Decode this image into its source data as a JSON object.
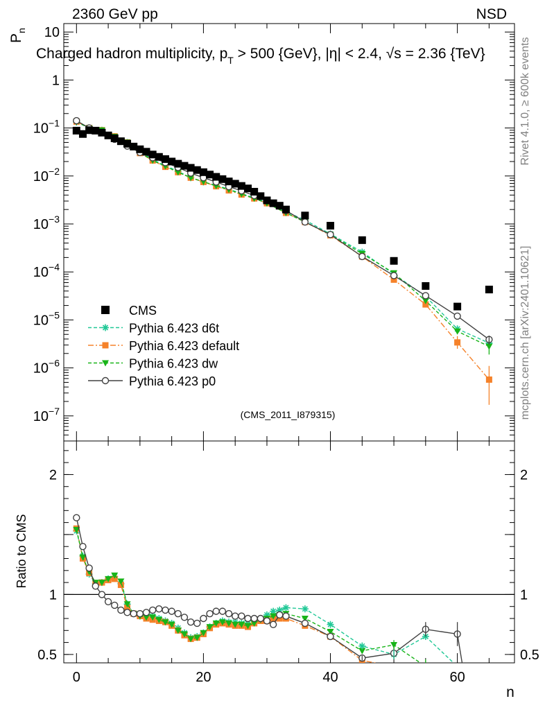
{
  "header": {
    "left": "2360 GeV pp",
    "right": "NSD",
    "title": "Charged hadron multiplicity, p",
    "title_sub": "T",
    "title_rest": " > 500 {GeV}, |η| < 2.4, √s = 2.36 {TeV}"
  },
  "side_text": {
    "rivet": "Rivet 4.1.0, ≥ 600k events",
    "mcplots": "mcplots.cern.ch [arXiv:2401.10621]"
  },
  "analysis_tag": "(CMS_2011_I879315)",
  "colors": {
    "cms": "#000000",
    "d6t": "#20c896",
    "default": "#f5822a",
    "dw": "#18b418",
    "p0": "#404040"
  },
  "legend": [
    {
      "key": "cms",
      "label": "CMS"
    },
    {
      "key": "d6t",
      "label": "Pythia 6.423 d6t"
    },
    {
      "key": "default",
      "label": "Pythia 6.423 default"
    },
    {
      "key": "dw",
      "label": "Pythia 6.423 dw"
    },
    {
      "key": "p0",
      "label": "Pythia 6.423 p0"
    }
  ],
  "chart_data": [
    {
      "type": "scatter",
      "title": "Charged hadron multiplicity",
      "xlabel": "n",
      "ylabel": "Pn",
      "yscale": "log",
      "xlim": [
        -2,
        69
      ],
      "ylim": [
        3e-08,
        15
      ],
      "ytick_labels": [
        "10^-7",
        "10^-6",
        "10^-5",
        "10^-4",
        "10^-3",
        "10^-2",
        "10^-1",
        "1",
        "10"
      ],
      "cms": {
        "x": [
          0,
          1,
          2,
          3,
          4,
          5,
          6,
          7,
          8,
          9,
          10,
          11,
          12,
          13,
          14,
          15,
          16,
          17,
          18,
          19,
          20,
          21,
          22,
          23,
          24,
          25,
          26,
          27,
          28,
          29,
          30,
          31,
          32,
          33,
          36,
          40,
          45,
          50,
          55,
          60,
          65
        ],
        "y": [
          0.088,
          0.075,
          0.09,
          0.088,
          0.08,
          0.07,
          0.061,
          0.053,
          0.047,
          0.041,
          0.036,
          0.032,
          0.028,
          0.025,
          0.0225,
          0.02,
          0.018,
          0.0163,
          0.0148,
          0.0133,
          0.012,
          0.0107,
          0.0096,
          0.0086,
          0.0077,
          0.0069,
          0.0062,
          0.0055,
          0.0047,
          0.0038,
          0.0031,
          0.0027,
          0.0024,
          0.002,
          0.0015,
          0.00092,
          0.00046,
          0.00017,
          5.1e-05,
          1.9e-05,
          4.3e-05
        ]
      },
      "series": [
        {
          "name": "Pythia 6.423 d6t",
          "key": "d6t",
          "x": [
            0,
            2,
            4,
            6,
            8,
            10,
            12,
            14,
            16,
            18,
            20,
            22,
            24,
            26,
            28,
            30,
            33,
            36,
            40,
            45,
            50,
            55,
            60,
            65
          ],
          "y": [
            0.133,
            0.1,
            0.09,
            0.066,
            0.05,
            0.032,
            0.022,
            0.0165,
            0.0125,
            0.0092,
            0.0075,
            0.0064,
            0.0053,
            0.0043,
            0.0035,
            0.0028,
            0.0018,
            0.0012,
            0.00062,
            0.00026,
            9e-05,
            3.1e-05,
            6.5e-06,
            3.3e-06
          ]
        },
        {
          "name": "Pythia 6.423 default",
          "key": "default",
          "x": [
            0,
            2,
            4,
            6,
            8,
            10,
            12,
            14,
            16,
            18,
            20,
            22,
            24,
            26,
            28,
            30,
            33,
            36,
            40,
            45,
            50,
            55,
            60,
            65
          ],
          "y": [
            0.136,
            0.1,
            0.09,
            0.067,
            0.05,
            0.03,
            0.021,
            0.0155,
            0.012,
            0.0092,
            0.0075,
            0.0061,
            0.005,
            0.0041,
            0.0034,
            0.0027,
            0.0017,
            0.0011,
            0.00058,
            0.00021,
            6.9e-05,
            2.1e-05,
            3.4e-06,
            5.7e-07
          ]
        },
        {
          "name": "Pythia 6.423 dw",
          "key": "dw",
          "x": [
            0,
            2,
            4,
            6,
            8,
            10,
            12,
            14,
            16,
            18,
            20,
            22,
            24,
            26,
            28,
            30,
            33,
            36,
            40,
            45,
            50,
            55,
            60,
            65
          ],
          "y": [
            0.134,
            0.1,
            0.09,
            0.066,
            0.05,
            0.031,
            0.021,
            0.016,
            0.012,
            0.0092,
            0.0076,
            0.0062,
            0.0052,
            0.0042,
            0.0034,
            0.0027,
            0.0017,
            0.0011,
            0.0006,
            0.00024,
            9.5e-05,
            2.5e-05,
            5.8e-06,
            2.8e-06
          ]
        },
        {
          "name": "Pythia 6.423 p0",
          "key": "p0",
          "x": [
            0,
            2,
            4,
            6,
            8,
            10,
            12,
            14,
            16,
            18,
            20,
            22,
            24,
            26,
            28,
            30,
            33,
            36,
            40,
            45,
            50,
            55,
            60,
            65
          ],
          "y": [
            0.142,
            0.1,
            0.08,
            0.058,
            0.042,
            0.031,
            0.024,
            0.019,
            0.015,
            0.0115,
            0.0092,
            0.0075,
            0.006,
            0.0049,
            0.0039,
            0.0031,
            0.0019,
            0.0011,
            0.0006,
            0.00021,
            8.4e-05,
            3.2e-05,
            1.2e-05,
            3.9e-06
          ]
        }
      ]
    },
    {
      "type": "line",
      "ylabel": "Ratio to CMS",
      "xlabel": "n",
      "xlim": [
        -2,
        69
      ],
      "ylim": [
        0.43,
        2.28
      ],
      "reference_line": 1,
      "xtick_labels": [
        "0",
        "20",
        "40",
        "60"
      ],
      "ytick_labels": [
        "0.5",
        "1",
        "2"
      ],
      "series": [
        {
          "name": "Pythia 6.423 d6t",
          "key": "d6t",
          "x": [
            0,
            1,
            2,
            3,
            4,
            5,
            6,
            7,
            8,
            9,
            10,
            11,
            12,
            13,
            14,
            15,
            16,
            17,
            18,
            19,
            20,
            21,
            22,
            23,
            24,
            25,
            26,
            27,
            28,
            29,
            30,
            31,
            32,
            33,
            36,
            40,
            45,
            50,
            55,
            60
          ],
          "y": [
            1.53,
            1.32,
            1.17,
            1.09,
            1.1,
            1.13,
            1.15,
            1.09,
            0.92,
            0.84,
            0.82,
            0.83,
            0.82,
            0.8,
            0.78,
            0.76,
            0.72,
            0.68,
            0.64,
            0.65,
            0.68,
            0.73,
            0.76,
            0.78,
            0.77,
            0.77,
            0.76,
            0.78,
            0.78,
            0.79,
            0.83,
            0.86,
            0.87,
            0.89,
            0.88,
            0.75,
            0.57,
            0.5,
            0.65,
            0.4
          ]
        },
        {
          "name": "Pythia 6.423 default",
          "key": "default",
          "x": [
            0,
            1,
            2,
            3,
            4,
            5,
            6,
            7,
            8,
            9,
            10,
            11,
            12,
            13,
            14,
            15,
            16,
            17,
            18,
            19,
            20,
            21,
            22,
            23,
            24,
            25,
            26,
            27,
            28,
            29,
            30,
            31,
            32,
            33,
            36,
            40,
            45,
            50,
            55,
            60
          ],
          "y": [
            1.55,
            1.3,
            1.18,
            1.09,
            1.1,
            1.12,
            1.13,
            1.08,
            0.89,
            0.84,
            0.82,
            0.8,
            0.79,
            0.78,
            0.77,
            0.74,
            0.7,
            0.66,
            0.63,
            0.64,
            0.67,
            0.72,
            0.75,
            0.76,
            0.75,
            0.74,
            0.74,
            0.73,
            0.76,
            0.78,
            0.78,
            0.8,
            0.8,
            0.8,
            0.74,
            0.65,
            0.45,
            0.4,
            0.37,
            0.35
          ]
        },
        {
          "name": "Pythia 6.423 dw",
          "key": "dw",
          "x": [
            0,
            1,
            2,
            3,
            4,
            5,
            6,
            7,
            8,
            9,
            10,
            11,
            12,
            13,
            14,
            15,
            16,
            17,
            18,
            19,
            20,
            21,
            22,
            23,
            24,
            25,
            26,
            27,
            28,
            29,
            30,
            31,
            32,
            33,
            36,
            40,
            45,
            50,
            55,
            60
          ],
          "y": [
            1.54,
            1.31,
            1.19,
            1.1,
            1.1,
            1.13,
            1.16,
            1.11,
            0.92,
            0.84,
            0.82,
            0.81,
            0.81,
            0.79,
            0.77,
            0.75,
            0.7,
            0.67,
            0.63,
            0.64,
            0.68,
            0.73,
            0.76,
            0.77,
            0.76,
            0.75,
            0.75,
            0.74,
            0.76,
            0.79,
            0.8,
            0.82,
            0.83,
            0.84,
            0.8,
            0.69,
            0.53,
            0.58,
            0.4,
            0.33
          ]
        },
        {
          "name": "Pythia 6.423 p0",
          "key": "p0",
          "x": [
            0,
            1,
            2,
            3,
            4,
            5,
            6,
            7,
            8,
            9,
            10,
            11,
            12,
            13,
            14,
            15,
            16,
            17,
            18,
            19,
            20,
            21,
            22,
            23,
            24,
            25,
            26,
            27,
            28,
            29,
            30,
            31,
            32,
            33,
            36,
            40,
            45,
            50,
            55,
            60,
            61
          ],
          "y": [
            1.64,
            1.4,
            1.22,
            1.07,
            1.0,
            0.94,
            0.91,
            0.87,
            0.85,
            0.84,
            0.84,
            0.85,
            0.87,
            0.88,
            0.87,
            0.86,
            0.84,
            0.81,
            0.77,
            0.76,
            0.8,
            0.84,
            0.86,
            0.86,
            0.84,
            0.82,
            0.82,
            0.8,
            0.8,
            0.8,
            0.78,
            0.75,
            0.83,
            0.82,
            0.76,
            0.65,
            0.47,
            0.51,
            0.71,
            0.67,
            0.35
          ]
        }
      ]
    }
  ]
}
